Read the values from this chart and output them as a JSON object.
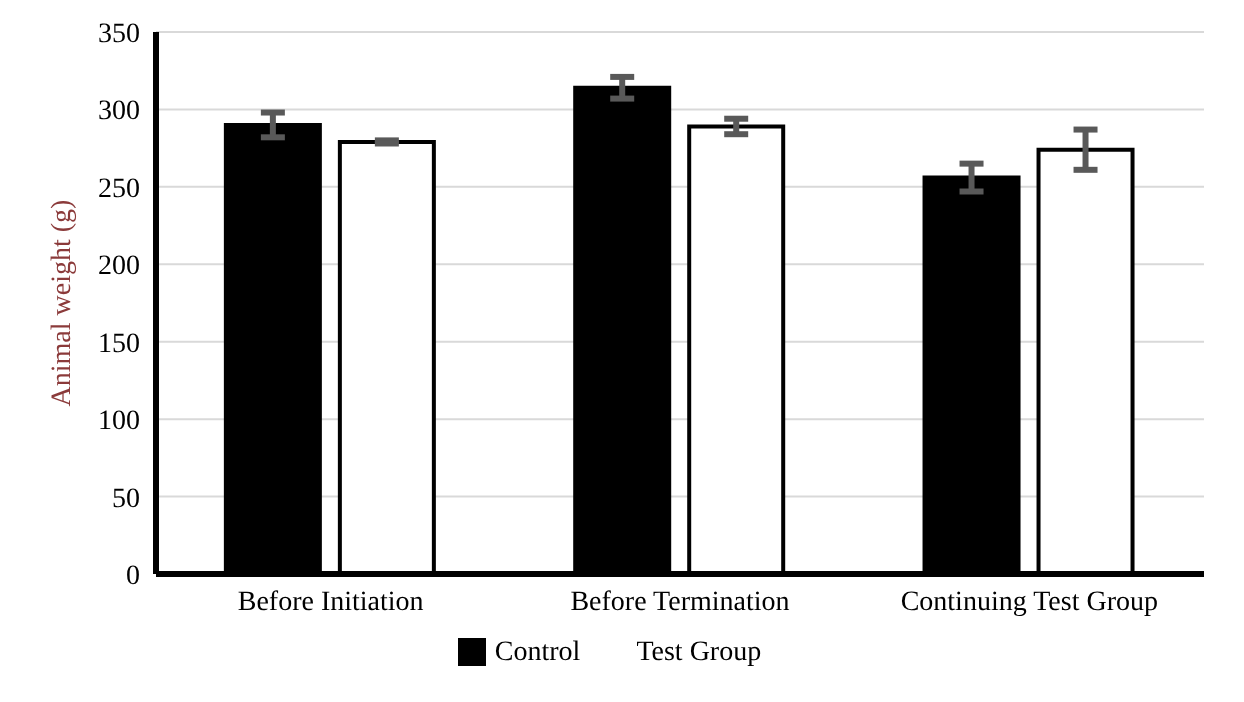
{
  "chart_data": {
    "type": "bar",
    "ylabel": "Animal  weight  (g)",
    "categories": [
      "Before Initiation",
      "Before Termination",
      "Continuing Test Group"
    ],
    "series": [
      {
        "name": "Control",
        "color": "#000000",
        "values": [
          290,
          314,
          256
        ],
        "errors": [
          8,
          7,
          9
        ]
      },
      {
        "name": "Test Group",
        "color": "#ffffff",
        "values": [
          279,
          289,
          274
        ],
        "errors": [
          1,
          5,
          13
        ]
      }
    ],
    "ylim": [
      0,
      350
    ],
    "yticks": [
      0,
      50,
      100,
      150,
      200,
      250,
      300,
      350
    ],
    "grid": "y",
    "legend": "bottom"
  }
}
